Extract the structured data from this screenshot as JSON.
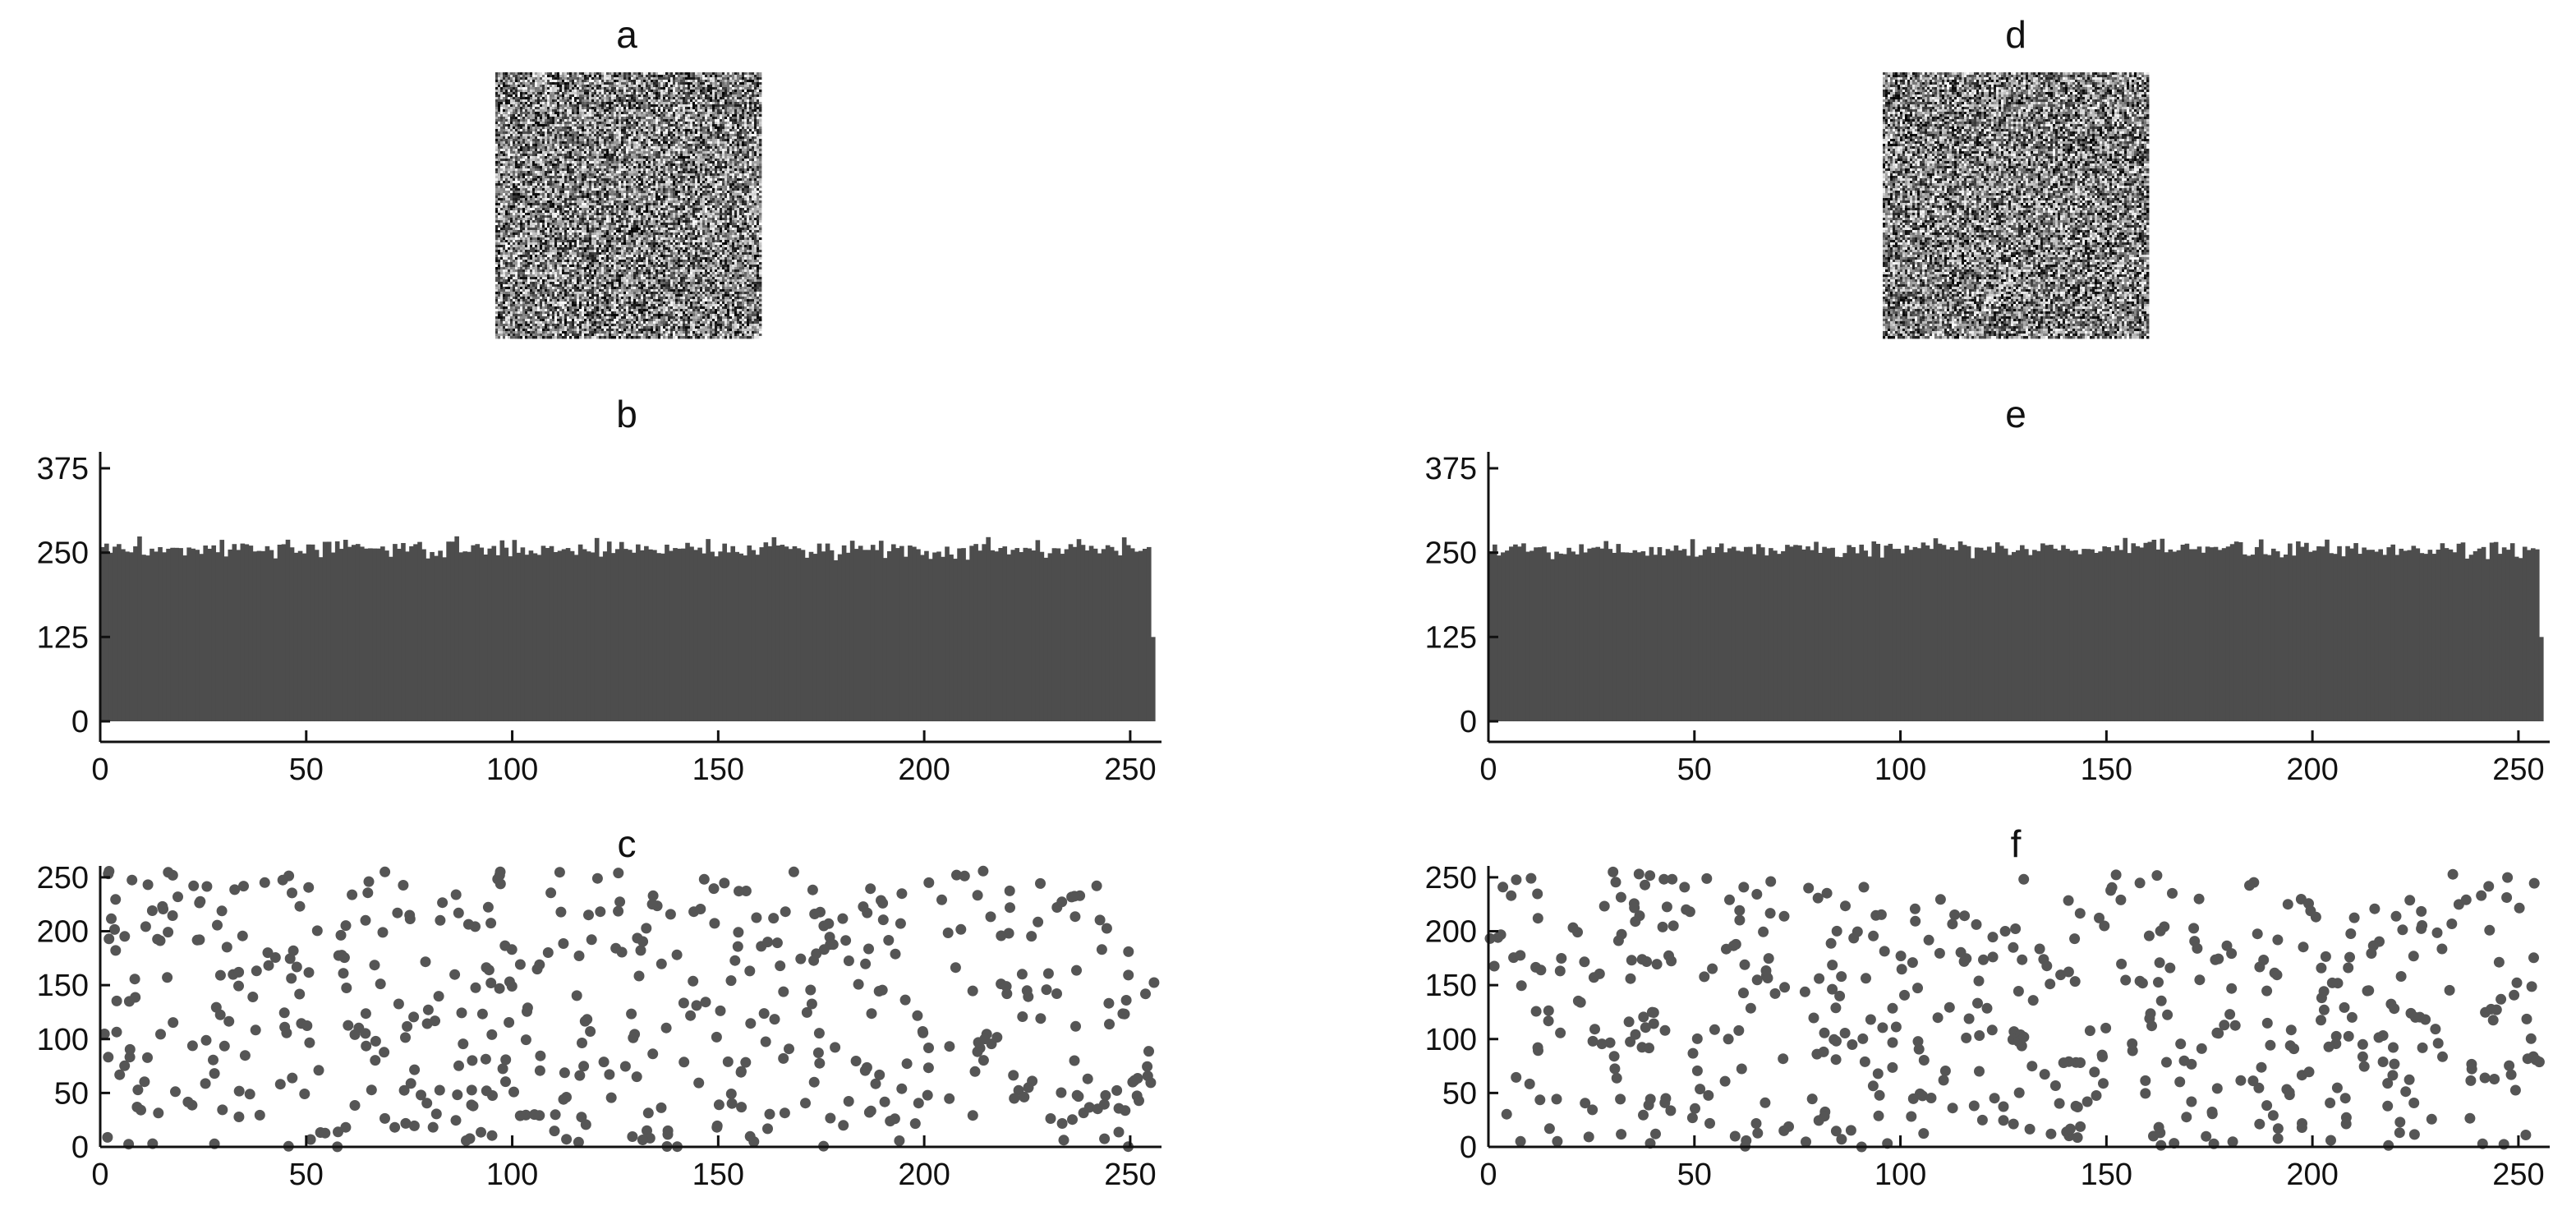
{
  "chart_data": [
    {
      "panel": "a",
      "type": "heatmap",
      "title": "a",
      "description_values": "256x256 encrypted image, noise-like grayscale pixels"
    },
    {
      "panel": "b",
      "type": "bar",
      "title": "b",
      "xlabel": "",
      "ylabel": "",
      "xlim": [
        0,
        256
      ],
      "ylim": [
        -25,
        395
      ],
      "xticks": [
        0,
        50,
        100,
        150,
        200,
        250
      ],
      "yticks": [
        0,
        125,
        250,
        375
      ],
      "bar_count": 256,
      "value_range": [
        235,
        300
      ],
      "typical_value": 256
    },
    {
      "panel": "c",
      "type": "scatter",
      "title": "c",
      "xlabel": "",
      "ylabel": "",
      "xlim": [
        0,
        256
      ],
      "ylim": [
        0,
        256
      ],
      "xticks": [
        0,
        50,
        100,
        150,
        200,
        250
      ],
      "yticks": [
        0,
        50,
        100,
        150,
        200,
        250
      ],
      "point_count": 500,
      "seed": 7
    },
    {
      "panel": "d",
      "type": "heatmap",
      "title": "d",
      "description_values": "256x256 encrypted image, noise-like grayscale pixels"
    },
    {
      "panel": "e",
      "type": "bar",
      "title": "e",
      "xlabel": "",
      "ylabel": "",
      "xlim": [
        0,
        256
      ],
      "ylim": [
        -25,
        395
      ],
      "xticks": [
        0,
        50,
        100,
        150,
        200,
        250
      ],
      "yticks": [
        0,
        125,
        250,
        375
      ],
      "bar_count": 256,
      "value_range": [
        235,
        305
      ],
      "typical_value": 256
    },
    {
      "panel": "f",
      "type": "scatter",
      "title": "f",
      "xlabel": "",
      "ylabel": "",
      "xlim": [
        0,
        256
      ],
      "ylim": [
        0,
        256
      ],
      "xticks": [
        0,
        50,
        100,
        150,
        200,
        250
      ],
      "yticks": [
        0,
        50,
        100,
        150,
        200,
        250
      ],
      "point_count": 500,
      "seed": 19
    }
  ],
  "colors": {
    "bar": "#4d4d4d",
    "point": "#555555",
    "axis": "#111111",
    "background": "#ffffff"
  }
}
